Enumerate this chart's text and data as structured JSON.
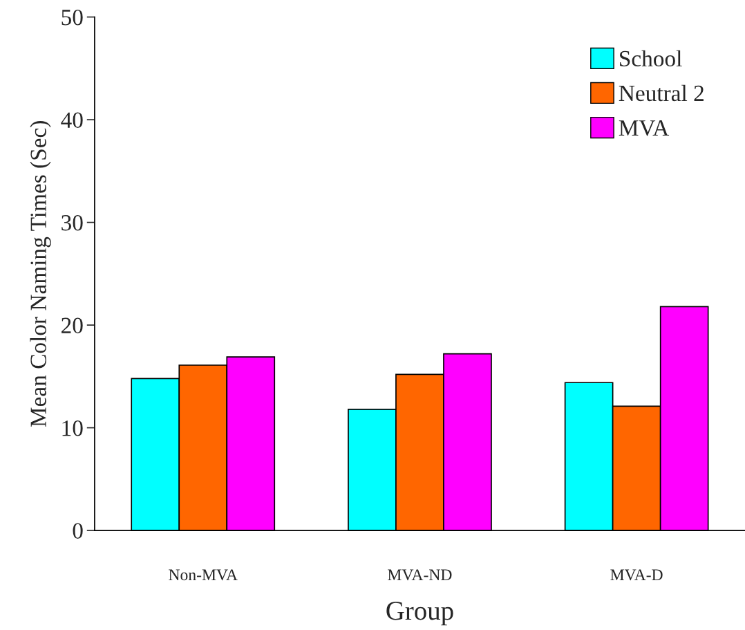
{
  "chart_data": {
    "type": "bar",
    "xlabel": "Group",
    "ylabel": "Mean Color Naming Times (Sec)",
    "categories": [
      "Non-MVA",
      "MVA-ND",
      "MVA-D"
    ],
    "series": [
      {
        "name": "School",
        "color": "#00ffff",
        "values": [
          14.8,
          11.8,
          14.4
        ]
      },
      {
        "name": "Neutral 2",
        "color": "#ff6600",
        "values": [
          16.1,
          15.2,
          12.1
        ]
      },
      {
        "name": "MVA",
        "color": "#ff00ff",
        "values": [
          16.9,
          17.2,
          21.8
        ]
      }
    ],
    "ylim": [
      0,
      50
    ],
    "yticks": [
      0,
      10,
      20,
      30,
      40,
      50
    ],
    "grid": false,
    "legend": "top right"
  }
}
